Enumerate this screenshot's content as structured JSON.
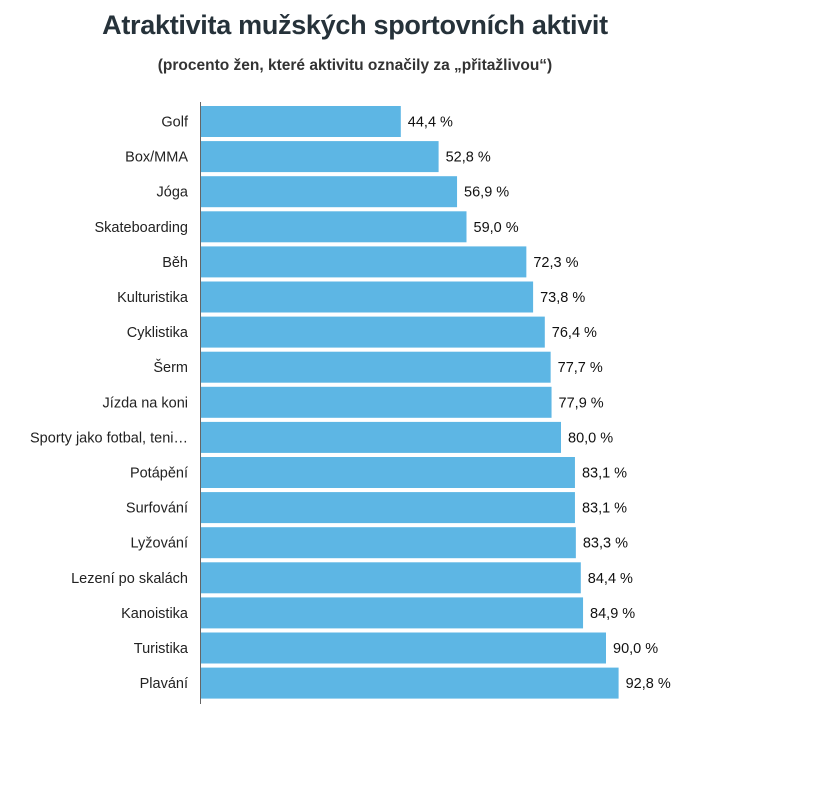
{
  "chart_data": {
    "type": "bar",
    "orientation": "horizontal",
    "title": "Atraktivita mužských sportovních aktivit",
    "subtitle": "(procento žen, které aktivitu označily za „přitažlivou“)",
    "categories": [
      "Golf",
      "Box/MMA",
      "Jóga",
      "Skateboarding",
      "Běh",
      "Kulturistika",
      "Cyklistika",
      "Šerm",
      "Jízda na koni",
      "Sporty jako fotbal, teni…",
      "Potápění",
      "Surfování",
      "Lyžování",
      "Lezení po skalách",
      "Kanoistika",
      "Turistika",
      "Plavání"
    ],
    "values": [
      44.4,
      52.8,
      56.9,
      59.0,
      72.3,
      73.8,
      76.4,
      77.7,
      77.9,
      80.0,
      83.1,
      83.1,
      83.3,
      84.4,
      84.9,
      90.0,
      92.8
    ],
    "value_labels": [
      "44,4 %",
      "52,8 %",
      "56,9 %",
      "59,0 %",
      "72,3 %",
      "73,8 %",
      "76,4 %",
      "77,7 %",
      "77,9 %",
      "80,0 %",
      "83,1 %",
      "83,1 %",
      "83,3 %",
      "84,4 %",
      "84,9 %",
      "90,0 %",
      "92,8 %"
    ],
    "xlim": [
      0,
      100
    ],
    "grid": false,
    "bar_color": "#5db6e4"
  }
}
